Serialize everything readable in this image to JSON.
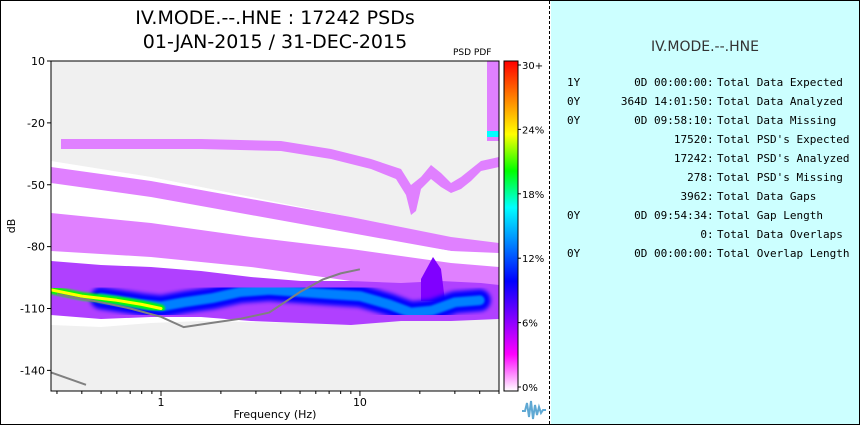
{
  "chart_data": {
    "type": "heatmap",
    "title": "IV.MODE.--.HNE : 17242 PSDs",
    "subtitle": "01-JAN-2015 / 31-DEC-2015",
    "xlabel": "Frequency (Hz)",
    "ylabel": "dB",
    "xscale": "log",
    "xlim": [
      0.28,
      50
    ],
    "ylim": [
      -150,
      10
    ],
    "x_ticks": [
      1,
      10
    ],
    "x_tick_labels": [
      "1",
      "10"
    ],
    "y_ticks": [
      10,
      -20,
      -50,
      -80,
      -110,
      -140
    ],
    "y_tick_labels": [
      "10",
      "-20",
      "-50",
      "-80",
      "-110",
      "-140"
    ],
    "corner_label": "PSD PDF",
    "colorbar": {
      "ticks": [
        "30+",
        "24%",
        "18%",
        "12%",
        "6%",
        "0%"
      ],
      "colors": [
        "#ff0000",
        "#ff8000",
        "#ffff00",
        "#00ff00",
        "#00ffff",
        "#0080ff",
        "#0000ff",
        "#8000ff",
        "#ff00ff",
        "#ffffff"
      ]
    },
    "series": [
      {
        "name": "low-noise model",
        "color": "#808080",
        "x": [
          0.3,
          0.5,
          0.7,
          1.0,
          1.3,
          1.8,
          2.5,
          3.5,
          5.0,
          6.5,
          8.0,
          10.0
        ],
        "y": [
          -103,
          -107,
          -110,
          -114,
          -119,
          -117,
          -115,
          -112,
          -102,
          -96,
          -93,
          -91
        ]
      },
      {
        "name": "low-noise model tail",
        "color": "#808080",
        "x": [
          0.28,
          0.42
        ],
        "y": [
          -141,
          -147
        ]
      },
      {
        "name": "mode ridge",
        "color": "#0000ff",
        "x": [
          0.5,
          0.8,
          1.0,
          1.3,
          1.8,
          2.5,
          3.5,
          5,
          7,
          10,
          14,
          18,
          23,
          30,
          40
        ],
        "y": [
          -105,
          -108,
          -109,
          -107,
          -105,
          -102,
          -101,
          -102,
          -103,
          -104,
          -108,
          -112,
          -111,
          -107,
          -106
        ]
      },
      {
        "name": "hot ridge",
        "color": "#00ff00",
        "x": [
          0.28,
          0.4,
          0.6,
          0.8,
          1.0
        ],
        "y": [
          -101,
          -104,
          -106,
          -108,
          -110
        ]
      }
    ]
  },
  "stats_panel": {
    "title": "IV.MODE.--.HNE",
    "rows": [
      {
        "y": "1Y",
        "d": "0D 00:00:00",
        "label": "Total Data Expected"
      },
      {
        "y": "0Y",
        "d": "364D 14:01:50",
        "label": "Total Data Analyzed"
      },
      {
        "y": "0Y",
        "d": "0D 09:58:10",
        "label": "Total Data Missing"
      },
      {
        "y": "",
        "d": "17520",
        "label": "Total PSD's Expected"
      },
      {
        "y": "",
        "d": "17242",
        "label": "Total PSD's Analyzed"
      },
      {
        "y": "",
        "d": "278",
        "label": "Total PSD's Missing"
      },
      {
        "y": "",
        "d": "3962",
        "label": "Total Data Gaps"
      },
      {
        "y": "0Y",
        "d": "0D 09:54:34",
        "label": "Total Gap Length"
      },
      {
        "y": "",
        "d": "0",
        "label": "Total Data Overlaps"
      },
      {
        "y": "0Y",
        "d": "0D 00:00:00",
        "label": "Total Overlap Length"
      }
    ]
  },
  "logo": {
    "icon": "waveform-logo-icon",
    "color": "#5fa8d3"
  }
}
